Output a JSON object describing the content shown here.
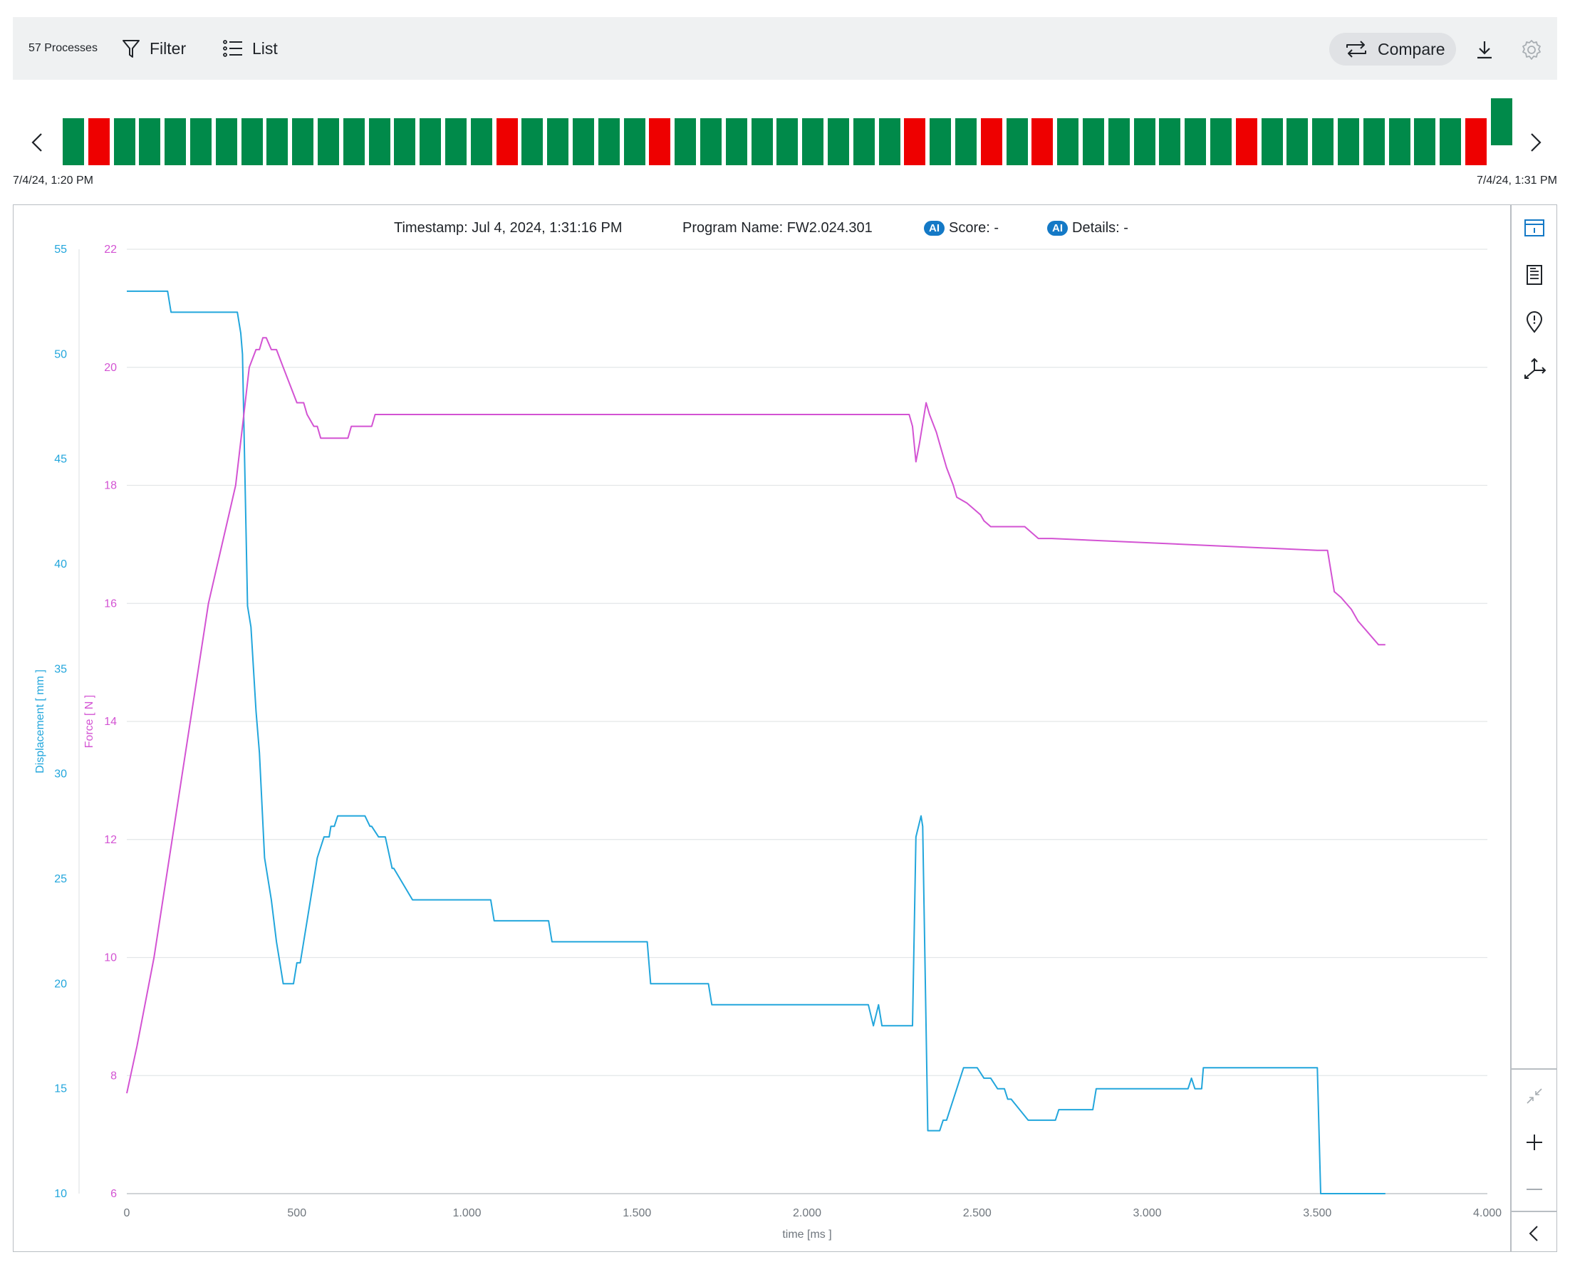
{
  "toolbar": {
    "process_count": "57 Processes",
    "filter_label": "Filter",
    "list_label": "List",
    "compare_label": "Compare",
    "icons": [
      "filter-icon",
      "list-icon",
      "compare-icon",
      "download-icon",
      "settings-icon"
    ]
  },
  "process_strip": {
    "start_label": "7/4/24, 1:20 PM",
    "end_label": "7/4/24, 1:31 PM",
    "ok_color": "#008a4a",
    "nok_color": "#ee0000",
    "statuses": [
      "ok",
      "nok",
      "ok",
      "ok",
      "ok",
      "ok",
      "ok",
      "ok",
      "ok",
      "ok",
      "ok",
      "ok",
      "ok",
      "ok",
      "ok",
      "ok",
      "ok",
      "nok",
      "ok",
      "ok",
      "ok",
      "ok",
      "ok",
      "nok",
      "ok",
      "ok",
      "ok",
      "ok",
      "ok",
      "ok",
      "ok",
      "ok",
      "ok",
      "nok",
      "ok",
      "ok",
      "nok",
      "ok",
      "nok",
      "ok",
      "ok",
      "ok",
      "ok",
      "ok",
      "ok",
      "ok",
      "nok",
      "ok",
      "ok",
      "ok",
      "ok",
      "ok",
      "ok",
      "ok",
      "ok",
      "nok",
      "ok"
    ],
    "selected_index": 56
  },
  "chart_header": {
    "timestamp": "Timestamp: Jul 4, 2024, 1:31:16 PM",
    "program": "Program Name: FW2.024.301",
    "ai_badge": "AI",
    "score": "Score: -",
    "details": "Details: -"
  },
  "sidebar": {
    "icons": [
      "process-info-icon",
      "report-icon",
      "location-alert-icon",
      "axes-icon",
      "collapse-zoom-icon",
      "zoom-in-icon",
      "zoom-out-icon",
      "collapse-panel-icon"
    ]
  },
  "chart_data": {
    "type": "line",
    "xlabel": "time [ms ]",
    "xlim": [
      0,
      4000
    ],
    "x_ticks": [
      0,
      500,
      1000,
      1500,
      2000,
      2500,
      3000,
      3500,
      4000
    ],
    "x_tick_labels": [
      "0",
      "500",
      "1.000",
      "1.500",
      "2.000",
      "2.500",
      "3.000",
      "3.500",
      "4.000"
    ],
    "axes": [
      {
        "id": "displacement",
        "label": "Displacement [ mm ]",
        "ylim": [
          10,
          55
        ],
        "ticks": [
          10,
          15,
          20,
          25,
          30,
          35,
          40,
          45,
          50,
          55
        ],
        "color": "#22a6dc"
      },
      {
        "id": "force",
        "label": "Force [ N ]",
        "ylim": [
          6,
          22
        ],
        "ticks": [
          6,
          8,
          10,
          12,
          14,
          16,
          18,
          20,
          22
        ],
        "color": "#d353d3"
      }
    ],
    "grid": true,
    "series": [
      {
        "name": "Displacement [ mm ]",
        "axis": "displacement",
        "color": "#22a6dc",
        "x": [
          0,
          120,
          130,
          325,
          335,
          340,
          355,
          365,
          380,
          390,
          405,
          425,
          440,
          450,
          460,
          490,
          500,
          510,
          520,
          530,
          560,
          580,
          595,
          600,
          610,
          620,
          625,
          630,
          640,
          690,
          695,
          700,
          715,
          720,
          740,
          760,
          780,
          785,
          840,
          850,
          1070,
          1080,
          1240,
          1250,
          1530,
          1540,
          1710,
          1720,
          2180,
          2195,
          2210,
          2220,
          2300,
          2310,
          2320,
          2335,
          2340,
          2355,
          2380,
          2390,
          2400,
          2410,
          2460,
          2470,
          2490,
          2500,
          2520,
          2540,
          2560,
          2580,
          2590,
          2600,
          2650,
          2660,
          2730,
          2740,
          2840,
          2850,
          3120,
          3130,
          3140,
          3160,
          3165,
          3300,
          3500,
          3510,
          3520,
          3700
        ],
        "y": [
          53,
          53,
          52,
          52,
          51,
          50,
          38,
          37,
          33,
          31,
          26,
          24,
          22,
          21,
          20,
          20,
          21,
          21,
          22,
          23,
          26,
          27,
          27,
          27.5,
          27.5,
          28,
          28,
          28,
          28,
          28,
          28,
          28,
          27.5,
          27.5,
          27,
          27,
          25.5,
          25.5,
          24,
          24,
          24,
          23,
          23,
          22,
          22,
          20,
          20,
          19,
          19,
          18,
          19,
          18,
          18,
          18,
          27,
          28,
          27.5,
          13,
          13,
          13,
          13.5,
          13.5,
          16,
          16,
          16,
          16,
          15.5,
          15.5,
          15,
          15,
          14.5,
          14.5,
          13.5,
          13.5,
          13.5,
          14,
          14,
          15,
          15,
          15.5,
          15,
          15,
          16,
          16,
          16,
          10,
          10,
          10
        ]
      },
      {
        "name": "Force [ N ]",
        "axis": "force",
        "color": "#d353d3",
        "x": [
          0,
          30,
          80,
          120,
          160,
          200,
          240,
          280,
          300,
          320,
          330,
          340,
          360,
          380,
          390,
          400,
          410,
          425,
          440,
          460,
          480,
          500,
          520,
          530,
          550,
          560,
          570,
          590,
          650,
          660,
          700,
          720,
          730,
          2270,
          2280,
          2290,
          2300,
          2310,
          2320,
          2330,
          2350,
          2360,
          2380,
          2390,
          2400,
          2410,
          2430,
          2440,
          2470,
          2490,
          2510,
          2520,
          2540,
          2560,
          2580,
          2600,
          2620,
          2640,
          2680,
          2700,
          2720,
          3500,
          3510,
          3530,
          3550,
          3570,
          3600,
          3620,
          3650,
          3680,
          3700
        ],
        "y": [
          7.7,
          8.5,
          10,
          11.5,
          13,
          14.5,
          16,
          17,
          17.5,
          18,
          18.5,
          19,
          20,
          20.3,
          20.3,
          20.5,
          20.5,
          20.3,
          20.3,
          20,
          19.7,
          19.4,
          19.4,
          19.2,
          19,
          19,
          18.8,
          18.8,
          18.8,
          19,
          19,
          19,
          19.2,
          19.2,
          19.2,
          19.2,
          19.2,
          19,
          18.4,
          18.7,
          19.4,
          19.2,
          18.9,
          18.7,
          18.5,
          18.3,
          18.0,
          17.8,
          17.7,
          17.6,
          17.5,
          17.4,
          17.3,
          17.3,
          17.3,
          17.3,
          17.3,
          17.3,
          17.1,
          17.1,
          17.1,
          16.9,
          16.9,
          16.9,
          16.2,
          16.1,
          15.9,
          15.7,
          15.5,
          15.3,
          15.3
        ]
      }
    ]
  }
}
